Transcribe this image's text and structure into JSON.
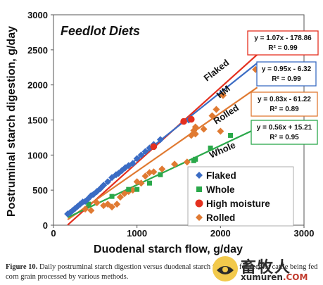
{
  "chart_data": {
    "type": "scatter",
    "title": "Feedlot  Diets",
    "xlabel": "Duodenal starch flow, g/day",
    "ylabel": "Postruminal starch digestion, g/day",
    "xlim": [
      0,
      3000
    ],
    "ylim": [
      0,
      3000
    ],
    "xticks": [
      "0",
      "1000",
      "2000",
      "3000"
    ],
    "yticks": [
      "0",
      "500",
      "1000",
      "1500",
      "2000",
      "2500",
      "3000"
    ],
    "legend_position": "bottom-right",
    "grid": false,
    "series": [
      {
        "name": "Flaked",
        "color": "#3b6cc4",
        "marker": "diamond",
        "points": [
          [
            170,
            160
          ],
          [
            200,
            180
          ],
          [
            230,
            210
          ],
          [
            260,
            240
          ],
          [
            290,
            270
          ],
          [
            320,
            300
          ],
          [
            350,
            330
          ],
          [
            380,
            340
          ],
          [
            410,
            370
          ],
          [
            450,
            420
          ],
          [
            480,
            440
          ],
          [
            520,
            480
          ],
          [
            560,
            520
          ],
          [
            600,
            570
          ],
          [
            650,
            620
          ],
          [
            700,
            680
          ],
          [
            750,
            720
          ],
          [
            780,
            740
          ],
          [
            820,
            780
          ],
          [
            860,
            820
          ],
          [
            900,
            850
          ],
          [
            950,
            880
          ],
          [
            1000,
            950
          ],
          [
            1050,
            1000
          ],
          [
            1100,
            1050
          ],
          [
            1150,
            1100
          ],
          [
            1200,
            1150
          ],
          [
            1280,
            1220
          ],
          [
            1620,
            1500
          ]
        ]
      },
      {
        "name": "Whole",
        "color": "#2aa84a",
        "marker": "square",
        "points": [
          [
            420,
            300
          ],
          [
            700,
            410
          ],
          [
            900,
            510
          ],
          [
            1000,
            510
          ],
          [
            1150,
            600
          ],
          [
            1280,
            720
          ],
          [
            1680,
            920
          ],
          [
            1700,
            940
          ],
          [
            1880,
            1100
          ],
          [
            2120,
            1280
          ]
        ]
      },
      {
        "name": "High moisture",
        "color": "#e4301f",
        "marker": "circle",
        "points": [
          [
            1200,
            1120
          ],
          [
            1560,
            1480
          ],
          [
            1650,
            1510
          ]
        ]
      },
      {
        "name": "Rolled",
        "color": "#e07a32",
        "marker": "diamond",
        "points": [
          [
            380,
            230
          ],
          [
            450,
            210
          ],
          [
            520,
            320
          ],
          [
            600,
            280
          ],
          [
            650,
            300
          ],
          [
            700,
            260
          ],
          [
            760,
            300
          ],
          [
            800,
            400
          ],
          [
            850,
            450
          ],
          [
            900,
            480
          ],
          [
            950,
            500
          ],
          [
            1000,
            620
          ],
          [
            1050,
            600
          ],
          [
            1100,
            700
          ],
          [
            1150,
            750
          ],
          [
            1200,
            760
          ],
          [
            1300,
            800
          ],
          [
            1450,
            870
          ],
          [
            1600,
            900
          ],
          [
            1650,
            1280
          ],
          [
            1680,
            1350
          ],
          [
            1700,
            1300
          ],
          [
            1700,
            1400
          ],
          [
            1800,
            1370
          ],
          [
            1900,
            1560
          ],
          [
            1950,
            1650
          ],
          [
            2000,
            1340
          ],
          [
            2030,
            1850
          ],
          [
            2420,
            2220
          ]
        ]
      }
    ],
    "trendlines": [
      {
        "series": "Flaked",
        "color": "#e4301f",
        "slope": 1.07,
        "intercept": -178.86,
        "x_range": [
          170,
          2440
        ],
        "equation": "y = 1.07x - 178.86",
        "r2": "R² = 0.99",
        "label": "Flaked"
      },
      {
        "series": "High moisture",
        "color": "#3b6cc4",
        "slope": 0.95,
        "intercept": -6.32,
        "x_range": [
          170,
          2440
        ],
        "equation": "y = 0.95x - 6.32",
        "r2": "R² = 0.99",
        "label": "HM"
      },
      {
        "series": "Rolled",
        "color": "#e07a32",
        "slope": 0.83,
        "intercept": -61.22,
        "x_range": [
          170,
          2440
        ],
        "equation": "y = 0.83x - 61.22",
        "r2": "R² = 0.89",
        "label": "Rolled"
      },
      {
        "series": "Whole",
        "color": "#2aa84a",
        "slope": 0.56,
        "intercept": 15.21,
        "x_range": [
          170,
          2440
        ],
        "equation": "y = 0.56x + 15.21",
        "r2": "R² = 0.95",
        "label": "Whole"
      }
    ]
  },
  "caption": {
    "lead": "Figure 10.",
    "text": " Daily postruminal starch digestion versus duodenal starch flow (Δ) for feedlot cattle being fed corn grain processed by various methods."
  },
  "watermark": {
    "cn": "畜牧人",
    "en": "xumuren",
    "com": ".COM"
  }
}
